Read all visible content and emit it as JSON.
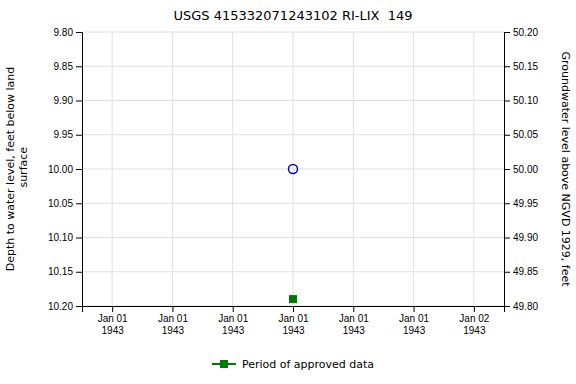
{
  "chart_data": {
    "type": "scatter",
    "title": "USGS 415332071243102 RI-LIX  149",
    "ylabel": "Depth to water level, feet below land\n surface",
    "y2label": "Groundwater level above NGVD 1929, feet",
    "categories": [
      "Jan 01\n1943",
      "Jan 01\n1943",
      "Jan 01\n1943",
      "Jan 01\n1943",
      "Jan 01\n1943",
      "Jan 01\n1943",
      "Jan 02\n1943"
    ],
    "series": [
      {
        "color": "#0000bb",
        "marker": "circle-open",
        "values": [
          null,
          null,
          null,
          10.0,
          null,
          null,
          null
        ]
      },
      {
        "name": "Period of approved data",
        "color": "#007700",
        "marker": "square",
        "values": [
          null,
          null,
          null,
          10.19,
          null,
          null,
          null
        ]
      }
    ],
    "ylim": [
      10.2,
      9.8
    ],
    "yticks": [
      {
        "value": 9.8,
        "label": "9.80"
      },
      9.85,
      {
        "value": 9.9,
        "label": "9.90"
      },
      9.95,
      {
        "value": 10.0,
        "label": "10.00"
      },
      10.05,
      {
        "value": 10.1,
        "label": "10.10"
      },
      10.15,
      {
        "value": 10.2,
        "label": "10.20"
      }
    ],
    "y2lim": [
      49.8,
      50.2
    ],
    "y2ticks": [
      {
        "value": 50.2,
        "label": "50.20"
      },
      50.15,
      {
        "value": 50.1,
        "label": "50.10"
      },
      50.05,
      {
        "value": 50.0,
        "label": "50.00"
      },
      49.95,
      {
        "value": 49.9,
        "label": "49.90"
      },
      49.85,
      {
        "value": 49.8,
        "label": "49.80"
      }
    ],
    "grid": true,
    "legend": "bottom"
  }
}
